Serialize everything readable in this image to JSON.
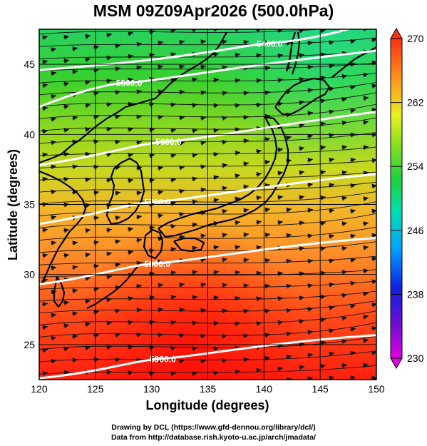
{
  "title": "MSM 09Z09Apr2026 (500.0hPa)",
  "xlabel": "Longitude (degrees)",
  "ylabel": "Latitude  (degrees)",
  "credits": {
    "line1": "Drawing by DCL (https://www.gfd-dennou.org/library/dcl/)",
    "line2": "Data from http://database.rish.kyoto-u.ac.jp/arch/jmadata/"
  },
  "map": {
    "lon_range": [
      120,
      150
    ],
    "lat_range": [
      22.5,
      47.5
    ],
    "lon_ticks": [
      "120",
      "125",
      "130",
      "135",
      "140",
      "145",
      "150"
    ],
    "lat_ticks": [
      "25",
      "30",
      "35",
      "40",
      "45"
    ],
    "grid": true
  },
  "colorbar": {
    "min": 230,
    "max": 270,
    "tick_labels": [
      "270",
      "262",
      "254",
      "246",
      "238",
      "230"
    ],
    "colors": [
      "#e000e0",
      "#2020e0",
      "#00c8ff",
      "#00e8a0",
      "#30d030",
      "#a0e020",
      "#f0f020",
      "#ffa020",
      "#ff3010"
    ]
  },
  "contours": [
    {
      "label": "5400.0",
      "lon": 140.5,
      "lat": 46.5
    },
    {
      "label": "5500.0",
      "lon": 128.0,
      "lat": 43.7
    },
    {
      "label": "5600.0",
      "lon": 131.5,
      "lat": 39.5
    },
    {
      "label": "5700.0",
      "lon": 130.5,
      "lat": 35.2
    },
    {
      "label": "5800.0",
      "lon": 130.5,
      "lat": 30.8
    },
    {
      "label": "5900.0",
      "lon": 131.0,
      "lat": 24.0
    }
  ]
}
